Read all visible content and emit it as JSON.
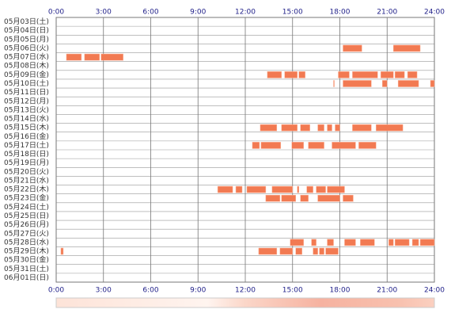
{
  "chart_data": {
    "type": "timeline",
    "xticks": [
      {
        "value": 0,
        "label": "0:00"
      },
      {
        "value": 3,
        "label": "3:00"
      },
      {
        "value": 6,
        "label": "6:00"
      },
      {
        "value": 9,
        "label": "9:00"
      },
      {
        "value": 12,
        "label": "12:00"
      },
      {
        "value": 15,
        "label": "15:00"
      },
      {
        "value": 18,
        "label": "18:00"
      },
      {
        "value": 21,
        "label": "21:00"
      },
      {
        "value": 24,
        "label": "24:00"
      }
    ],
    "xlim": [
      0,
      24
    ],
    "color": "#f27a52",
    "grid": true,
    "categories": [
      "05月03日(土)",
      "05月04日(日)",
      "05月05日(月)",
      "05月06日(火)",
      "05月07日(水)",
      "05月08日(木)",
      "05月09日(金)",
      "05月10日(土)",
      "05月11日(日)",
      "05月12日(月)",
      "05月13日(火)",
      "05月14日(水)",
      "05月15日(木)",
      "05月16日(金)",
      "05月17日(土)",
      "05月18日(日)",
      "05月19日(月)",
      "05月20日(火)",
      "05月21日(水)",
      "05月22日(木)",
      "05月23日(金)",
      "05月24日(土)",
      "05月25日(日)",
      "05月26日(月)",
      "05月27日(火)",
      "05月28日(水)",
      "05月29日(木)",
      "05月30日(金)",
      "05月31日(土)",
      "06月01日(日)"
    ],
    "intervals": [
      [],
      [],
      [],
      [
        [
          18.2,
          19.4
        ],
        [
          21.4,
          23.1
        ]
      ],
      [
        [
          0.65,
          1.6
        ],
        [
          1.8,
          2.75
        ],
        [
          2.85,
          4.25
        ]
      ],
      [],
      [
        [
          13.4,
          14.3
        ],
        [
          14.5,
          15.3
        ],
        [
          15.4,
          15.8
        ],
        [
          17.9,
          18.6
        ],
        [
          18.8,
          20.4
        ],
        [
          20.6,
          21.4
        ],
        [
          21.5,
          22.1
        ],
        [
          22.3,
          22.9
        ]
      ],
      [
        [
          17.6,
          17.65
        ],
        [
          18.2,
          20.0
        ],
        [
          20.7,
          21.0
        ],
        [
          21.7,
          23.0
        ],
        [
          23.75,
          24
        ]
      ],
      [],
      [],
      [],
      [],
      [
        [
          12.95,
          14.0
        ],
        [
          14.3,
          15.3
        ],
        [
          15.5,
          16.1
        ],
        [
          16.6,
          17.0
        ],
        [
          17.2,
          17.5
        ],
        [
          17.7,
          18.0
        ],
        [
          18.8,
          20.0
        ],
        [
          20.3,
          22.0
        ]
      ],
      [],
      [
        [
          12.45,
          12.9
        ],
        [
          13.0,
          14.25
        ],
        [
          14.95,
          15.7
        ],
        [
          16.0,
          17.0
        ],
        [
          17.5,
          19.0
        ],
        [
          19.2,
          20.3
        ]
      ],
      [],
      [],
      [],
      [],
      [
        [
          10.25,
          11.2
        ],
        [
          11.4,
          11.8
        ],
        [
          12.1,
          13.3
        ],
        [
          13.7,
          15.0
        ],
        [
          15.3,
          15.4
        ],
        [
          15.9,
          16.3
        ],
        [
          16.5,
          17.1
        ],
        [
          17.2,
          18.3
        ]
      ],
      [
        [
          13.3,
          14.2
        ],
        [
          14.3,
          15.2
        ],
        [
          15.5,
          16.0
        ],
        [
          16.6,
          18.0
        ],
        [
          18.2,
          18.85
        ]
      ],
      [],
      [],
      [],
      [],
      [
        [
          14.85,
          15.7
        ],
        [
          16.2,
          16.5
        ],
        [
          17.2,
          17.6
        ],
        [
          18.3,
          19.0
        ],
        [
          19.3,
          20.2
        ],
        [
          21.1,
          21.4
        ],
        [
          21.5,
          22.4
        ],
        [
          22.6,
          23.0
        ],
        [
          23.1,
          24.0
        ]
      ],
      [
        [
          0.3,
          0.45
        ],
        [
          12.85,
          14.0
        ],
        [
          14.2,
          15.0
        ],
        [
          15.2,
          15.6
        ],
        [
          16.3,
          16.6
        ],
        [
          16.7,
          17.0
        ],
        [
          17.1,
          17.9
        ]
      ],
      [],
      [],
      []
    ]
  }
}
